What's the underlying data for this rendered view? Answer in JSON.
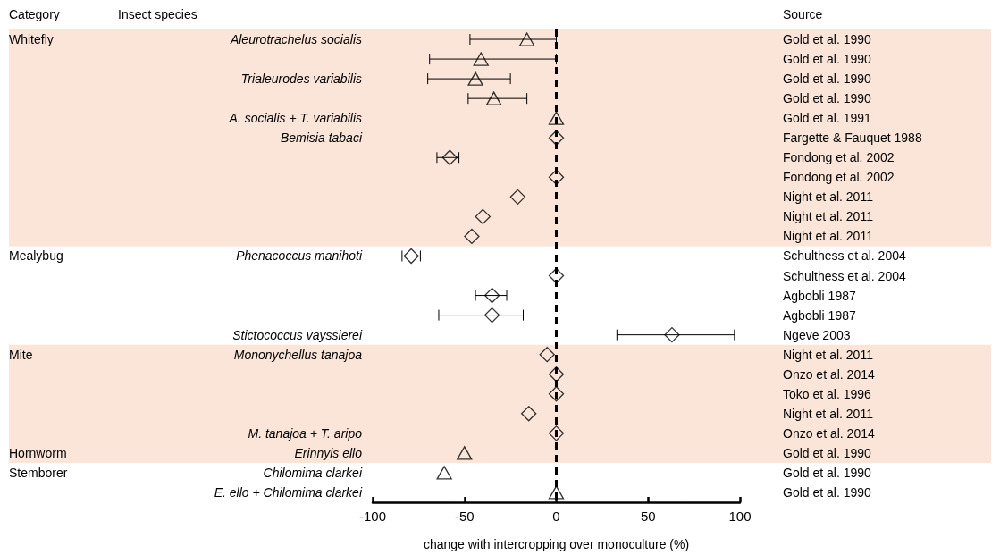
{
  "chart_data": {
    "type": "scatter",
    "orientation": "horizontal",
    "xlabel": "change with intercropping over monoculture (%)",
    "categories": [
      "Aleurotrachelus socialis",
      null,
      "Trialeurodes variabilis",
      null,
      "A. socialis + T. variabilis",
      "Bemisia tabaci",
      null,
      null,
      null,
      null,
      null,
      "Phenacoccus manihoti",
      null,
      null,
      null,
      "Stictococcus vayssierei",
      "Mononychellus tanajoa",
      null,
      null,
      null,
      "M. tanajoa + T. aripo",
      "Erinnyis ello",
      "Chilomima clarkei",
      "E. ello + Chilomima clarkei"
    ],
    "y2_categories": [
      "Gold et al. 1990",
      "Gold et al. 1990",
      "Gold et al. 1990",
      "Gold et al. 1990",
      "Gold et al. 1991",
      "Fargette & Fauquet 1988",
      "Fondong et al. 2002",
      "Fondong et al. 2002",
      "Night et al. 2011",
      "Night et al. 2011",
      "Night et al. 2011",
      "Schulthess et al. 2004",
      "Schulthess et al. 2004",
      "Agbobli 1987",
      "Agbobli 1987",
      "Ngeve 2003",
      "Night et al. 2011",
      "Onzo et al. 2014",
      "Toko et al. 1996",
      "Night et al. 2011",
      "Onzo et al. 2014",
      "Gold et al. 1990",
      "Gold et al. 1990",
      "Gold et al. 1990"
    ],
    "series": [
      {
        "marker": "triangle",
        "color": "#000000",
        "values": [
          -16,
          -41,
          -44,
          -34,
          0,
          null,
          null,
          null,
          null,
          null,
          null,
          null,
          null,
          null,
          null,
          null,
          null,
          null,
          null,
          null,
          null,
          -50,
          -61,
          0
        ],
        "errors": [
          [
            -47,
            0
          ],
          [
            -69,
            0
          ],
          [
            -70,
            -25
          ],
          [
            -48,
            -16
          ],
          null,
          null,
          null,
          null,
          null,
          null,
          null,
          null,
          null,
          null,
          null,
          null,
          null,
          null,
          null,
          null,
          null,
          null,
          null,
          null
        ]
      },
      {
        "marker": "diamond",
        "color": "#000000",
        "values": [
          null,
          null,
          null,
          null,
          null,
          0,
          -58,
          0,
          -21,
          -40,
          -46,
          -79,
          0,
          -35,
          -35,
          63,
          -5,
          0,
          0,
          -15,
          0,
          null,
          null,
          null
        ],
        "errors": [
          null,
          null,
          null,
          null,
          null,
          null,
          [
            -65,
            -53
          ],
          null,
          null,
          null,
          null,
          [
            -84,
            -74
          ],
          null,
          [
            -44,
            -27
          ],
          [
            -64,
            -18
          ],
          [
            33,
            97
          ],
          null,
          null,
          null,
          null,
          null,
          null,
          null,
          null
        ]
      }
    ],
    "ref_lines": [
      {
        "axis": "x",
        "value": 0,
        "line_style": "dashed",
        "color": "#000000"
      }
    ],
    "xlim": [
      -100,
      100
    ],
    "xticks": [
      -100,
      -50,
      0,
      50,
      100
    ],
    "grid": false,
    "annotations": [
      "Category",
      "Insect species",
      "Source",
      "Whitefly",
      "Mealybug",
      "Mite",
      "Hornworm",
      "Stemborer"
    ]
  }
}
